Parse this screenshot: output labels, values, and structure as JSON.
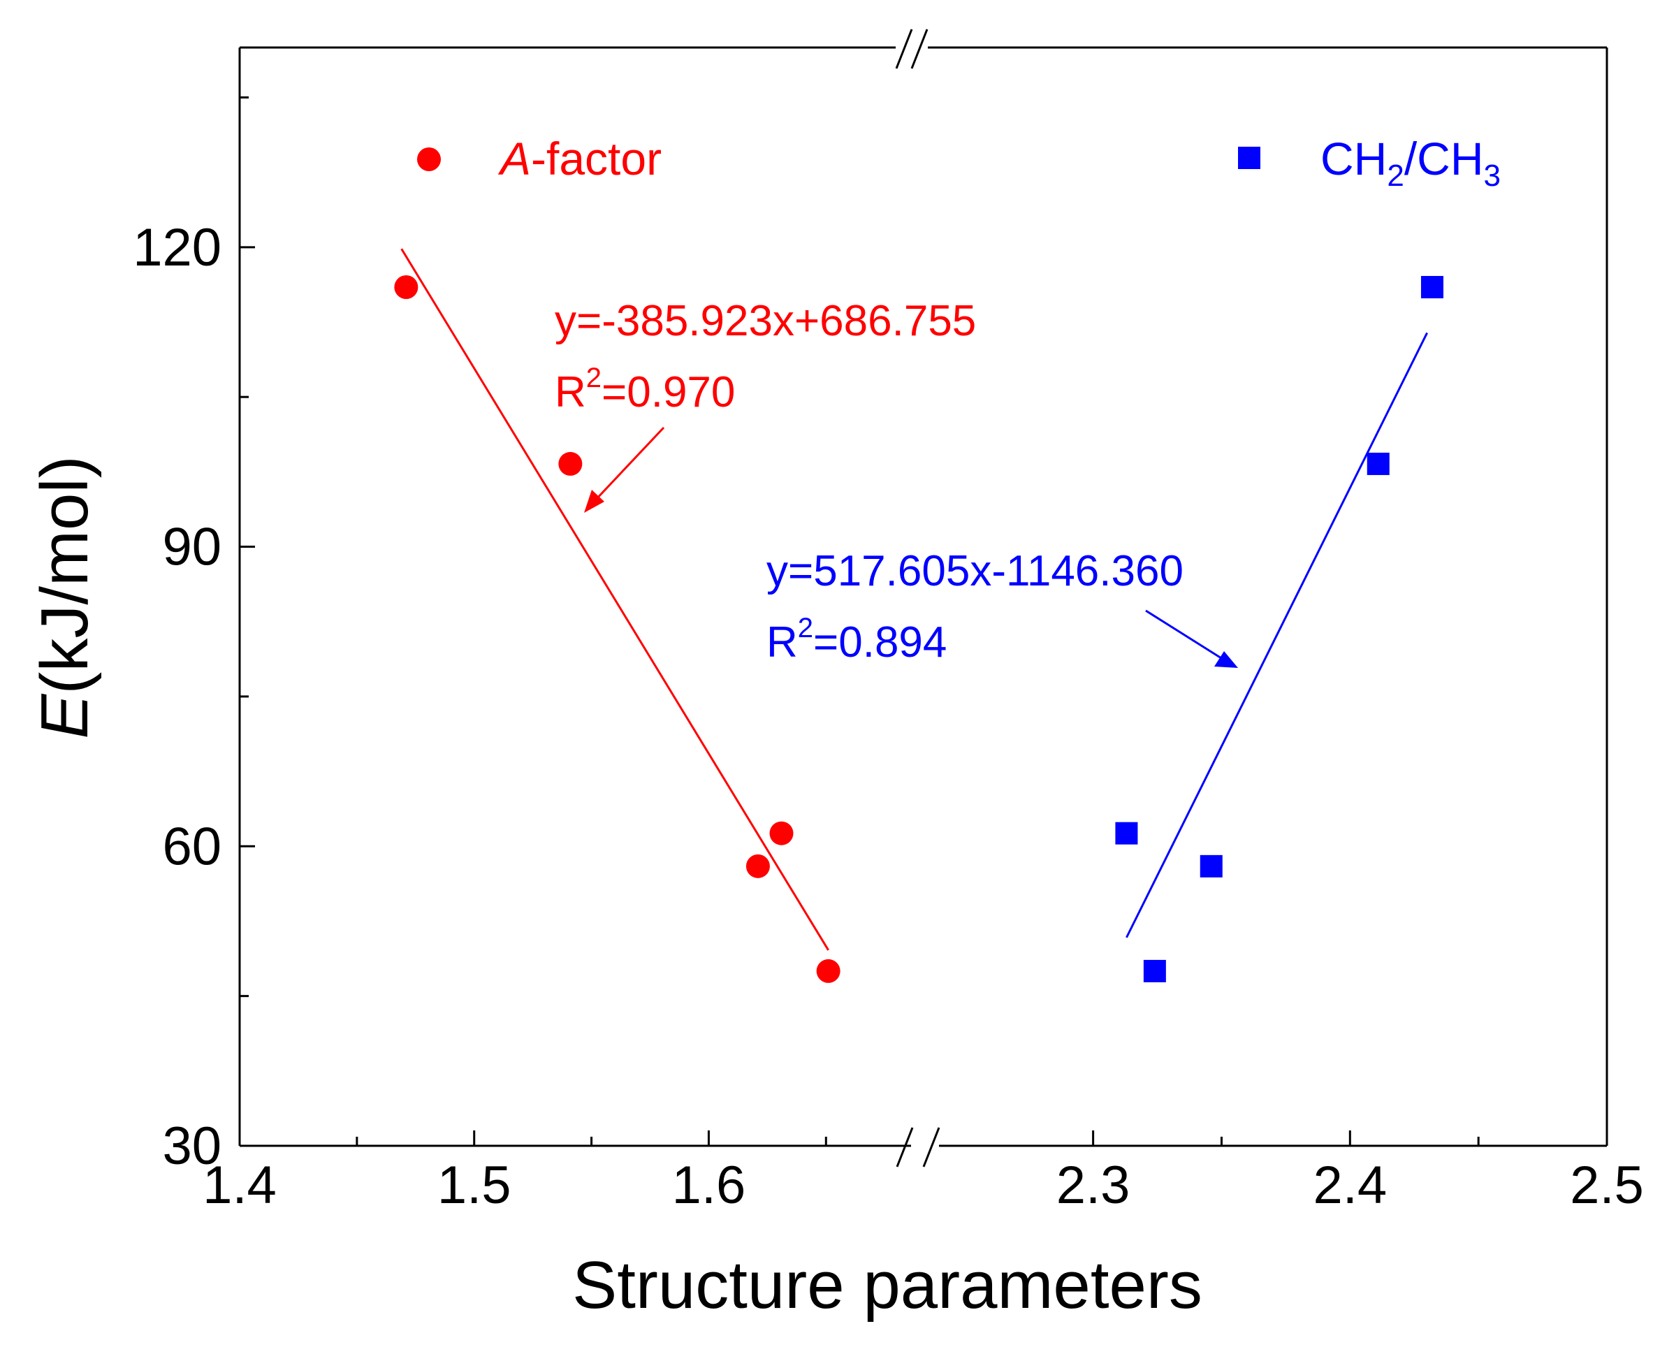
{
  "chart_data": {
    "type": "scatter",
    "xlabel": "Structure parameters",
    "ylabel": {
      "italic": "E",
      "rest": "(kJ/mol)"
    },
    "ylim": [
      30,
      140
    ],
    "y_ticks": [
      30,
      60,
      90,
      120
    ],
    "x_segments": [
      {
        "range": [
          1.4,
          1.68
        ],
        "ticks": [
          1.4,
          1.5,
          1.6
        ],
        "minor": [
          1.45,
          1.55,
          1.65
        ],
        "tick_labels": [
          "1.4",
          "1.5",
          "1.6"
        ]
      },
      {
        "range": [
          2.24,
          2.5
        ],
        "ticks": [
          2.3,
          2.4,
          2.5
        ],
        "minor": [
          2.35,
          2.45
        ],
        "tick_labels": [
          "2.3",
          "2.4",
          "2.5"
        ]
      }
    ],
    "axis_break": true,
    "series": [
      {
        "name": "A-factor",
        "legend": {
          "italic": "A",
          "rest": "-factor"
        },
        "marker": "circle",
        "color": "#ff0000",
        "x": [
          1.471,
          1.541,
          1.621,
          1.631,
          1.651
        ],
        "y": [
          116.0,
          98.3,
          58.0,
          61.3,
          47.5
        ],
        "fit": {
          "x_range": [
            1.469,
            1.651
          ],
          "equation": "y=-385.923x+686.755",
          "r2_label": "R",
          "r2_sup": "2",
          "r2_value": "=0.970"
        }
      },
      {
        "name": "CH2/CH3",
        "legend": {
          "parts": [
            "CH",
            "2",
            "/CH",
            "3"
          ]
        },
        "marker": "square",
        "color": "#0000ff",
        "x": [
          2.313,
          2.324,
          2.346,
          2.411,
          2.432
        ],
        "y": [
          61.3,
          47.5,
          58.0,
          98.3,
          116.0
        ],
        "fit": {
          "x_range": [
            2.313,
            2.43
          ],
          "equation": "y=517.605x-1146.360",
          "r2_label": "R",
          "r2_sup": "2",
          "r2_value": "=0.894"
        }
      }
    ]
  }
}
